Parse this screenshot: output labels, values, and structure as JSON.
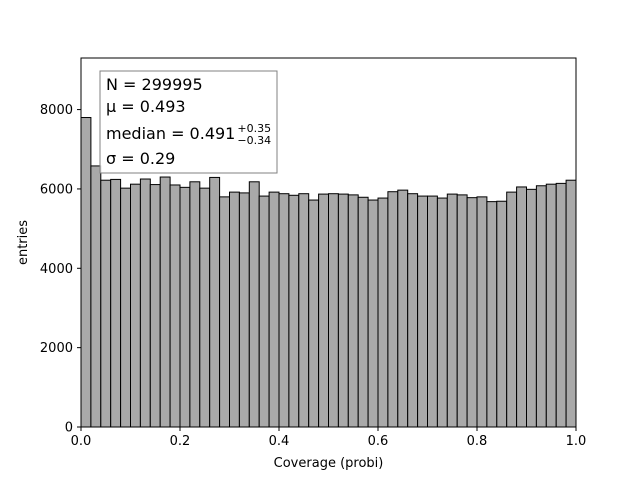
{
  "chart_data": {
    "type": "bar",
    "xlabel": "Coverage (probi)",
    "ylabel": "entries",
    "xlim": [
      0,
      1
    ],
    "ylim": [
      0,
      9300
    ],
    "xticks": [
      0,
      0.2,
      0.4,
      0.6,
      0.8,
      1.0
    ],
    "xtick_labels": [
      "0.0",
      "0.2",
      "0.4",
      "0.6",
      "0.8",
      "1.0"
    ],
    "yticks": [
      0,
      2000,
      4000,
      6000,
      8000
    ],
    "ytick_labels": [
      "0",
      "2000",
      "4000",
      "6000",
      "8000"
    ],
    "bin_width": 0.02,
    "bin_edges_start": [
      0.0,
      0.02,
      0.04,
      0.06,
      0.08,
      0.1,
      0.12,
      0.14,
      0.16,
      0.18,
      0.2,
      0.22,
      0.24,
      0.26,
      0.28,
      0.3,
      0.32,
      0.34,
      0.36,
      0.38,
      0.4,
      0.42,
      0.44,
      0.46,
      0.48,
      0.5,
      0.52,
      0.54,
      0.56,
      0.58,
      0.6,
      0.62,
      0.64,
      0.66,
      0.68,
      0.7,
      0.72,
      0.74,
      0.76,
      0.78,
      0.8,
      0.82,
      0.84,
      0.86,
      0.88,
      0.9,
      0.92,
      0.94,
      0.96,
      0.98
    ],
    "values": [
      7800,
      6580,
      6220,
      6240,
      6020,
      6120,
      6250,
      6110,
      6300,
      6100,
      6040,
      6180,
      6020,
      6290,
      5800,
      5920,
      5900,
      6180,
      5820,
      5920,
      5880,
      5840,
      5880,
      5720,
      5870,
      5880,
      5870,
      5850,
      5790,
      5720,
      5770,
      5930,
      5970,
      5880,
      5820,
      5820,
      5770,
      5870,
      5850,
      5780,
      5800,
      5680,
      5690,
      5920,
      6050,
      5990,
      6080,
      6120,
      6140,
      6220
    ],
    "bar_color": "#a9a9a9",
    "edge_color": "#000000",
    "grid": false,
    "legend": "none",
    "stats_box": {
      "n": "N = 299995",
      "mu": "μ = 0.493",
      "median_main": "median = 0.491",
      "median_up": "+0.35",
      "median_down": "−0.34",
      "sigma": "σ = 0.29"
    }
  }
}
